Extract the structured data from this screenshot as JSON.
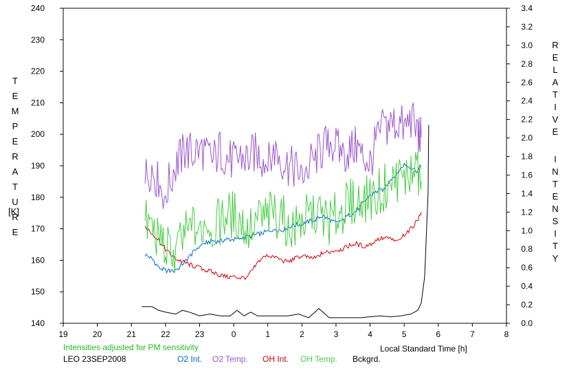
{
  "chart_data": {
    "type": "line",
    "left_axis": {
      "label": "TEMPERATURE",
      "unit": "[K]",
      "ylim": [
        140,
        240
      ],
      "ticks": [
        140,
        150,
        160,
        170,
        180,
        190,
        200,
        210,
        220,
        230,
        240
      ]
    },
    "right_axis": {
      "label_words": [
        "RELATIVE",
        "INTENSITY"
      ],
      "ylim": [
        0.0,
        3.4
      ],
      "ticks": [
        "0.0",
        "0.2",
        "0.4",
        "0.6",
        "0.8",
        "1.0",
        "1.2",
        "1.4",
        "1.6",
        "1.8",
        "2.0",
        "2.2",
        "2.4",
        "2.6",
        "2.8",
        "3.0",
        "3.2",
        "3.4"
      ]
    },
    "x_axis": {
      "label": "Local Standard Time [h]",
      "ticks": [
        "19",
        "20",
        "21",
        "22",
        "23",
        "0",
        "1",
        "2",
        "3",
        "4",
        "5",
        "6",
        "7",
        "8"
      ]
    },
    "note": "Intensities adjusted for PM sensitivity",
    "station_label": "LEO 23SEP2008",
    "grid": false,
    "series": [
      {
        "name": "O2 Int.",
        "color": "#0066cc",
        "axis": "right",
        "x": [
          21.4,
          21.6,
          21.8,
          22.0,
          22.2,
          22.4,
          22.6,
          22.8,
          23.0,
          23.2,
          23.4,
          23.6,
          23.8,
          24.0,
          24.2,
          24.4,
          24.6,
          24.8,
          25.0,
          25.2,
          25.4,
          25.6,
          25.8,
          26.0,
          26.2,
          26.4,
          26.6,
          26.8,
          27.0,
          27.2,
          27.4,
          27.6,
          27.8,
          28.0,
          28.2,
          28.4,
          28.6,
          28.8,
          29.0,
          29.2,
          29.4,
          29.5
        ],
        "y": [
          0.74,
          0.7,
          0.6,
          0.57,
          0.56,
          0.6,
          0.68,
          0.76,
          0.84,
          0.87,
          0.89,
          0.88,
          0.91,
          0.9,
          0.92,
          0.93,
          0.95,
          0.97,
          0.99,
          1.02,
          1.0,
          1.04,
          1.06,
          1.07,
          1.1,
          1.12,
          1.16,
          1.12,
          1.08,
          1.12,
          1.17,
          1.21,
          1.3,
          1.38,
          1.42,
          1.45,
          1.55,
          1.62,
          1.72,
          1.68,
          1.64,
          1.7
        ]
      },
      {
        "name": "O2 Temp.",
        "color": "#9955cc",
        "axis": "left",
        "x": [
          21.4,
          21.6,
          21.8,
          22.0,
          22.2,
          22.4,
          22.6,
          22.8,
          23.0,
          23.2,
          23.4,
          23.6,
          23.8,
          24.0,
          24.2,
          24.4,
          24.6,
          24.8,
          25.0,
          25.2,
          25.4,
          25.6,
          25.8,
          26.0,
          26.2,
          26.4,
          26.6,
          26.8,
          27.0,
          27.2,
          27.4,
          27.6,
          27.8,
          28.0,
          28.2,
          28.4,
          28.6,
          28.8,
          29.0,
          29.2,
          29.4,
          29.5
        ],
        "y": [
          186,
          190,
          184,
          181,
          188,
          192,
          195,
          194,
          196,
          194,
          192,
          195,
          193,
          191,
          193,
          192,
          194,
          193,
          190,
          195,
          192,
          190,
          189,
          188,
          190,
          193,
          195,
          198,
          196,
          193,
          195,
          196,
          193,
          191,
          198,
          202,
          203,
          204,
          202,
          205,
          200,
          199
        ]
      },
      {
        "name": "OH Int.",
        "color": "#cc0000",
        "axis": "right",
        "x": [
          21.4,
          21.6,
          21.8,
          22.0,
          22.2,
          22.4,
          22.6,
          22.8,
          23.0,
          23.2,
          23.4,
          23.6,
          23.8,
          24.0,
          24.2,
          24.4,
          24.6,
          24.8,
          25.0,
          25.2,
          25.4,
          25.6,
          25.8,
          26.0,
          26.2,
          26.4,
          26.6,
          26.8,
          27.0,
          27.2,
          27.4,
          27.6,
          27.8,
          28.0,
          28.2,
          28.4,
          28.6,
          28.8,
          29.0,
          29.2,
          29.4,
          29.5
        ],
        "y": [
          1.04,
          0.97,
          0.9,
          0.8,
          0.72,
          0.68,
          0.65,
          0.62,
          0.6,
          0.57,
          0.55,
          0.52,
          0.5,
          0.5,
          0.49,
          0.5,
          0.6,
          0.7,
          0.73,
          0.72,
          0.68,
          0.66,
          0.7,
          0.73,
          0.71,
          0.7,
          0.76,
          0.77,
          0.79,
          0.8,
          0.84,
          0.86,
          0.83,
          0.85,
          0.9,
          0.92,
          0.91,
          0.87,
          0.96,
          1.02,
          1.12,
          1.2
        ]
      },
      {
        "name": "OH Temp.",
        "color": "#44cc44",
        "axis": "left",
        "x": [
          21.4,
          21.6,
          21.8,
          22.0,
          22.2,
          22.4,
          22.6,
          22.8,
          23.0,
          23.2,
          23.4,
          23.6,
          23.8,
          24.0,
          24.2,
          24.4,
          24.6,
          24.8,
          25.0,
          25.2,
          25.4,
          25.6,
          25.8,
          26.0,
          26.2,
          26.4,
          26.6,
          26.8,
          27.0,
          27.2,
          27.4,
          27.6,
          27.8,
          28.0,
          28.2,
          28.4,
          28.6,
          28.8,
          29.0,
          29.2,
          29.4,
          29.5
        ],
        "y": [
          172,
          170,
          168,
          165,
          160,
          164,
          168,
          170,
          170,
          172,
          171,
          172,
          174,
          175,
          172,
          170,
          172,
          173,
          174,
          175,
          173,
          172,
          170,
          172,
          174,
          176,
          174,
          172,
          174,
          176,
          178,
          179,
          178,
          180,
          181,
          183,
          185,
          186,
          186,
          188,
          187,
          185
        ]
      },
      {
        "name": "Bckgrd.",
        "color": "#000000",
        "axis": "right",
        "x": [
          21.3,
          21.6,
          21.8,
          22.0,
          22.3,
          22.5,
          22.7,
          23.0,
          23.3,
          23.6,
          23.9,
          24.1,
          24.3,
          24.5,
          24.7,
          25.0,
          25.3,
          25.6,
          25.9,
          26.2,
          26.5,
          26.8,
          27.1,
          27.4,
          27.7,
          28.0,
          28.3,
          28.6,
          28.9,
          29.2,
          29.4,
          29.5,
          29.6,
          29.7,
          29.72
        ],
        "y": [
          0.18,
          0.18,
          0.14,
          0.12,
          0.1,
          0.14,
          0.12,
          0.08,
          0.1,
          0.08,
          0.08,
          0.14,
          0.08,
          0.12,
          0.08,
          0.08,
          0.08,
          0.08,
          0.1,
          0.06,
          0.16,
          0.06,
          0.06,
          0.06,
          0.06,
          0.07,
          0.08,
          0.07,
          0.08,
          0.1,
          0.14,
          0.22,
          0.5,
          1.4,
          2.14
        ]
      }
    ]
  }
}
